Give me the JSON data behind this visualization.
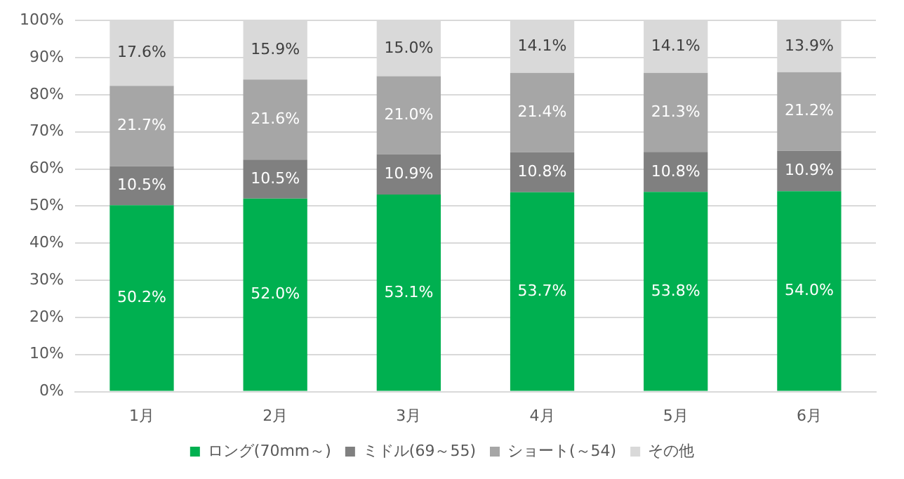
{
  "chart_data": {
    "type": "bar",
    "stacked": true,
    "categories": [
      "1月",
      "2月",
      "3月",
      "4月",
      "5月",
      "6月"
    ],
    "series": [
      {
        "name": "ロング(70mm～)",
        "color": "#00b050",
        "values": [
          50.2,
          52.0,
          53.1,
          53.7,
          53.8,
          54.0
        ],
        "value_labels": [
          "50.2%",
          "52.0%",
          "53.1%",
          "53.7%",
          "53.8%",
          "54.0%"
        ]
      },
      {
        "name": "ミドル(69～55)",
        "color": "#808080",
        "values": [
          10.5,
          10.5,
          10.9,
          10.8,
          10.8,
          10.9
        ],
        "value_labels": [
          "10.5%",
          "10.5%",
          "10.9%",
          "10.8%",
          "10.8%",
          "10.9%"
        ]
      },
      {
        "name": "ショート(～54)",
        "color": "#a6a6a6",
        "values": [
          21.7,
          21.6,
          21.0,
          21.4,
          21.3,
          21.2
        ],
        "value_labels": [
          "21.7%",
          "21.6%",
          "21.0%",
          "21.4%",
          "21.3%",
          "21.2%"
        ]
      },
      {
        "name": "その他",
        "color": "#d9d9d9",
        "values": [
          17.6,
          15.9,
          15.0,
          14.1,
          14.1,
          13.9
        ],
        "value_labels": [
          "17.6%",
          "15.9%",
          "15.0%",
          "14.1%",
          "14.1%",
          "13.9%"
        ]
      }
    ],
    "ylim": [
      0,
      100
    ],
    "yticks": [
      {
        "value": 0,
        "label": "0%"
      },
      {
        "value": 10,
        "label": "10%"
      },
      {
        "value": 20,
        "label": "20%"
      },
      {
        "value": 30,
        "label": "30%"
      },
      {
        "value": 40,
        "label": "40%"
      },
      {
        "value": 50,
        "label": "50%"
      },
      {
        "value": 60,
        "label": "60%"
      },
      {
        "value": 70,
        "label": "70%"
      },
      {
        "value": 80,
        "label": "80%"
      },
      {
        "value": 90,
        "label": "90%"
      },
      {
        "value": 100,
        "label": "100%"
      }
    ],
    "grid": "y",
    "legend": "bottom"
  }
}
